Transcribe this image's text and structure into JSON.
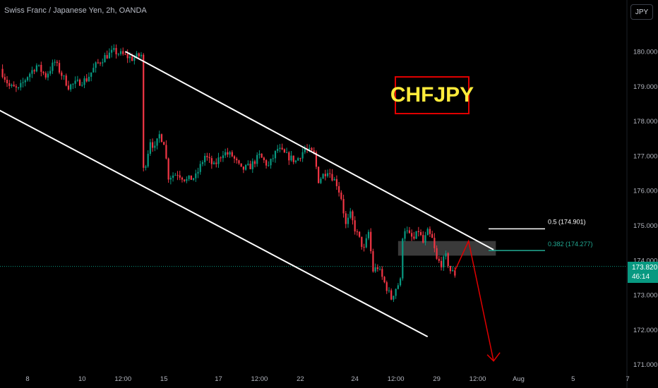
{
  "header": {
    "title": "Swiss Franc / Japanese Yen, 2h, OANDA",
    "currency_button": "JPY"
  },
  "price_tag": {
    "price": "173.820",
    "countdown": "46:14"
  },
  "annotation": {
    "symbol_label": "CHFJPY"
  },
  "colors": {
    "up": "#089981",
    "down": "#f23645",
    "channel": "#ffffff",
    "box": "#e00000",
    "symbol_text": "#ffeb3b",
    "fib_0382": "#22ab94",
    "projection": "#e00000"
  },
  "chart_data": {
    "type": "candlestick",
    "title": "",
    "ylim": [
      170.83,
      181.05
    ],
    "y_ticks": [
      {
        "value": 180,
        "label": "180.000"
      },
      {
        "value": 179,
        "label": "179.000"
      },
      {
        "value": 178,
        "label": "178.000"
      },
      {
        "value": 177,
        "label": "177.000"
      },
      {
        "value": 176,
        "label": "176.000"
      },
      {
        "value": 175,
        "label": "175.000"
      },
      {
        "value": 174,
        "label": "174.000"
      },
      {
        "value": 173,
        "label": "173.000"
      },
      {
        "value": 172,
        "label": "172.000"
      },
      {
        "value": 171,
        "label": "171.000"
      }
    ],
    "x_ticks": [
      {
        "t": 0,
        "label": "8"
      },
      {
        "t": 24,
        "label": "10"
      },
      {
        "t": 42,
        "label": "12:00"
      },
      {
        "t": 60,
        "label": "15"
      },
      {
        "t": 84,
        "label": "17"
      },
      {
        "t": 102,
        "label": "12:00"
      },
      {
        "t": 120,
        "label": "22"
      },
      {
        "t": 144,
        "label": "24"
      },
      {
        "t": 162,
        "label": "12:00"
      },
      {
        "t": 180,
        "label": "29"
      },
      {
        "t": 198,
        "label": "12:00"
      },
      {
        "t": 216,
        "label": "Aug"
      },
      {
        "t": 240,
        "label": "5"
      },
      {
        "t": 264,
        "label": "7"
      }
    ],
    "last_price": 173.82,
    "price_path": [
      [
        -12,
        179.5
      ],
      [
        -8,
        179.0
      ],
      [
        -4,
        178.9
      ],
      [
        0,
        179.3
      ],
      [
        4,
        179.6
      ],
      [
        8,
        179.3
      ],
      [
        12,
        179.7
      ],
      [
        14,
        179.45
      ],
      [
        18,
        179.0
      ],
      [
        22,
        179.1
      ],
      [
        26,
        179.2
      ],
      [
        30,
        179.6
      ],
      [
        34,
        179.85
      ],
      [
        38,
        180.0
      ],
      [
        42,
        179.9
      ],
      [
        46,
        179.8
      ],
      [
        50,
        179.9
      ],
      [
        51,
        176.6
      ],
      [
        52,
        176.8
      ],
      [
        54,
        177.45
      ],
      [
        56,
        177.2
      ],
      [
        58,
        177.6
      ],
      [
        60,
        177.4
      ],
      [
        62,
        176.4
      ],
      [
        66,
        176.5
      ],
      [
        70,
        176.3
      ],
      [
        74,
        176.4
      ],
      [
        78,
        177.0
      ],
      [
        82,
        176.7
      ],
      [
        86,
        177.1
      ],
      [
        90,
        177.0
      ],
      [
        94,
        176.6
      ],
      [
        98,
        176.7
      ],
      [
        102,
        177.0
      ],
      [
        106,
        176.7
      ],
      [
        110,
        177.2
      ],
      [
        114,
        177.0
      ],
      [
        118,
        176.85
      ],
      [
        122,
        177.2
      ],
      [
        126,
        177.05
      ],
      [
        128,
        176.3
      ],
      [
        132,
        176.6
      ],
      [
        134,
        176.4
      ],
      [
        136,
        176.2
      ],
      [
        138,
        175.8
      ],
      [
        140,
        175.0
      ],
      [
        142,
        175.3
      ],
      [
        144,
        174.9
      ],
      [
        146,
        174.6
      ],
      [
        148,
        174.3
      ],
      [
        150,
        174.8
      ],
      [
        152,
        173.7
      ],
      [
        154,
        173.8
      ],
      [
        156,
        173.5
      ],
      [
        158,
        173.2
      ],
      [
        160,
        172.9
      ],
      [
        162,
        173.2
      ],
      [
        164,
        173.4
      ],
      [
        165,
        174.7
      ],
      [
        166,
        174.9
      ],
      [
        168,
        174.7
      ],
      [
        170,
        174.6
      ],
      [
        172,
        174.85
      ],
      [
        174,
        174.5
      ],
      [
        176,
        174.8
      ],
      [
        178,
        174.6
      ],
      [
        180,
        174.0
      ],
      [
        182,
        173.9
      ],
      [
        184,
        174.1
      ],
      [
        186,
        173.7
      ],
      [
        188,
        173.6
      ]
    ],
    "channel_upper": [
      [
        43,
        180.0
      ],
      [
        205,
        174.3
      ]
    ],
    "channel_lower": [
      [
        -15,
        178.4
      ],
      [
        176,
        171.8
      ]
    ],
    "zone": {
      "t_start": 163,
      "t_end": 206,
      "y_top": 174.55,
      "y_bottom": 174.13
    },
    "fib_levels": [
      {
        "level": "0.5",
        "value": 174.901,
        "label": "0.5 (174.901)"
      },
      {
        "level": "0.382",
        "value": 174.277,
        "label": "0.382 (174.277)"
      }
    ],
    "projection": [
      [
        188,
        173.7
      ],
      [
        194,
        174.55
      ],
      [
        205,
        171.1
      ]
    ]
  }
}
